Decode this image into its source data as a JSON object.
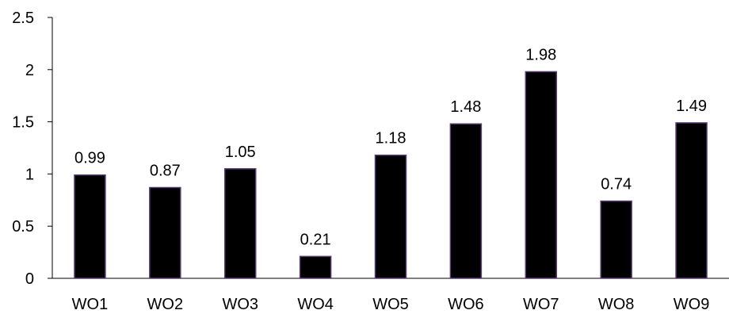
{
  "chart_data": {
    "type": "bar",
    "title": "",
    "xlabel": "",
    "ylabel": "",
    "categories": [
      "WO1",
      "WO2",
      "WO3",
      "WO4",
      "WO5",
      "WO6",
      "WO7",
      "WO8",
      "WO9"
    ],
    "values": [
      0.99,
      0.87,
      1.05,
      0.21,
      1.18,
      1.48,
      1.98,
      0.74,
      1.49
    ],
    "data_labels": [
      "0.99",
      "0.87",
      "1.05",
      "0.21",
      "1.18",
      "1.48",
      "1.98",
      "0.74",
      "1.49"
    ],
    "ylim": [
      0,
      2.5
    ],
    "y_ticks": [
      0,
      0.5,
      1,
      1.5,
      2,
      2.5
    ],
    "y_tick_labels": [
      "0",
      "0.5",
      "1",
      "1.5",
      "2",
      "2.5"
    ],
    "grid": false,
    "legend": "none",
    "colors": {
      "bar_fill": "#000000",
      "bar_stroke": "#5a3d73",
      "axis": "#000000",
      "text": "#000000",
      "background": "#ffffff"
    }
  }
}
